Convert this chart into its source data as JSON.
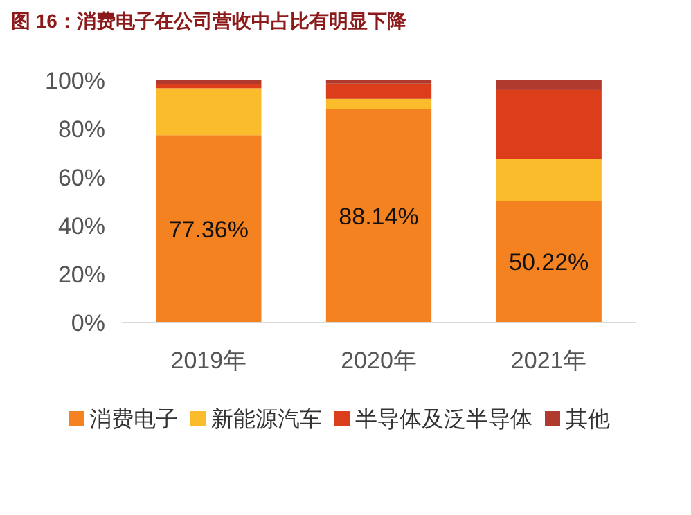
{
  "chart_data": {
    "type": "bar",
    "title": "图 16：消费电子在公司营收中占比有明显下降",
    "categories": [
      "2019年",
      "2020年",
      "2021年"
    ],
    "stacked": true,
    "ylim": [
      0,
      100
    ],
    "yticks": [
      {
        "value": 0,
        "label": "0%"
      },
      {
        "value": 20,
        "label": "20%"
      },
      {
        "value": 40,
        "label": "40%"
      },
      {
        "value": 60,
        "label": "60%"
      },
      {
        "value": 80,
        "label": "80%"
      },
      {
        "value": 100,
        "label": "100%"
      }
    ],
    "grid": false,
    "legend": "bottom",
    "series": [
      {
        "name": "消费电子",
        "color": "#f58220",
        "values": [
          77.36,
          88.14,
          50.22
        ],
        "value_labels": [
          "77.36%",
          "88.14%",
          "50.22%"
        ]
      },
      {
        "name": "新能源汽车",
        "color": "#fbbc2c",
        "values": [
          19.4,
          4.2,
          17.4
        ]
      },
      {
        "name": "半导体及泛半导体",
        "color": "#dc3d1b",
        "values": [
          1.7,
          6.3,
          28.4
        ]
      },
      {
        "name": "其他",
        "color": "#b03a2e",
        "values": [
          1.54,
          1.36,
          4.0
        ]
      }
    ]
  }
}
